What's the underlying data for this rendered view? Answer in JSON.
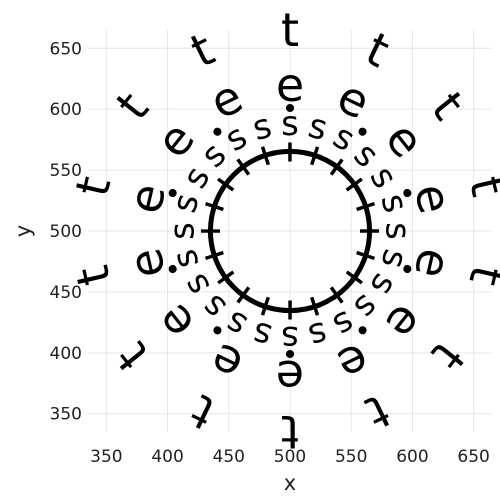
{
  "chart_data": {
    "type": "scatter",
    "title": "",
    "xlabel": "x",
    "ylabel": "y",
    "xlim": [
      335,
      665
    ],
    "ylim": [
      335,
      665
    ],
    "x_ticks": [
      "350",
      "400",
      "450",
      "500",
      "550",
      "600",
      "650"
    ],
    "y_ticks": [
      "350",
      "400",
      "450",
      "500",
      "550",
      "600",
      "650"
    ],
    "grid": true,
    "legend": "none",
    "center": {
      "x": 500,
      "y": 500
    },
    "series": [
      {
        "glyph": "t",
        "radius": 165,
        "count": 14
      },
      {
        "glyph": "e",
        "radius": 120,
        "count": 14
      },
      {
        "glyph": "•",
        "radius": 100,
        "count": 10
      },
      {
        "glyph": "s",
        "radius": 88,
        "count": 24
      },
      {
        "glyph": "+",
        "radius": 65,
        "count": 20
      }
    ],
    "circle": {
      "radius": 65
    }
  }
}
